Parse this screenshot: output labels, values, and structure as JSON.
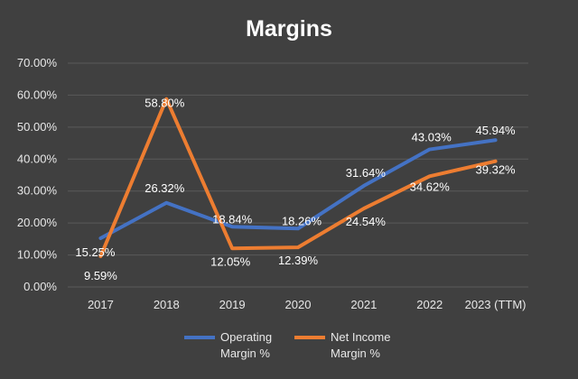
{
  "chart_data": {
    "type": "line",
    "title": "Margins",
    "categories": [
      "2017",
      "2018",
      "2019",
      "2020",
      "2021",
      "2022",
      "2023 (TTM)"
    ],
    "ylim": [
      0,
      70
    ],
    "yticks": [
      "0.00%",
      "10.00%",
      "20.00%",
      "30.00%",
      "40.00%",
      "50.00%",
      "60.00%",
      "70.00%"
    ],
    "grid": true,
    "legend_position": "bottom",
    "series": [
      {
        "name": "Operating Margin %",
        "legend_lines": [
          "Operating",
          "Margin %"
        ],
        "color": "#4472C4",
        "values": [
          15.25,
          26.32,
          18.84,
          18.26,
          31.64,
          43.03,
          45.94
        ],
        "labels": [
          "15.25%",
          "26.32%",
          "18.84%",
          "18.26%",
          "31.64%",
          "43.03%",
          "45.94%"
        ]
      },
      {
        "name": "Net Income Margin %",
        "legend_lines": [
          "Net Income",
          "Margin %"
        ],
        "color": "#ED7D31",
        "values": [
          9.59,
          58.8,
          12.05,
          12.39,
          24.54,
          34.62,
          39.32
        ],
        "labels": [
          "9.59%",
          "58.80%",
          "12.05%",
          "12.39%",
          "24.54%",
          "34.62%",
          "39.32%"
        ]
      }
    ]
  }
}
